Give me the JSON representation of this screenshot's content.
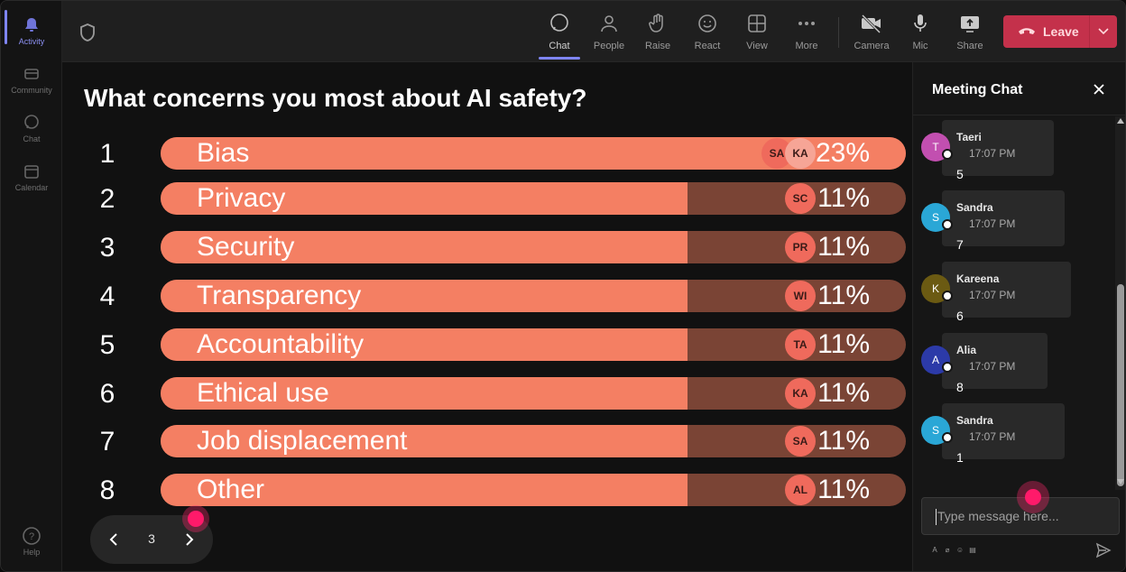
{
  "rail": {
    "items": [
      {
        "label": "Activity",
        "icon": "bell-icon"
      },
      {
        "label": "Community",
        "icon": "community-icon"
      },
      {
        "label": "Chat",
        "icon": "chat-icon"
      },
      {
        "label": "Calendar",
        "icon": "calendar-icon"
      },
      {
        "label": "Help",
        "icon": "help-icon"
      }
    ]
  },
  "toolbar": {
    "chat": "Chat",
    "people": "People",
    "raise": "Raise",
    "react": "React",
    "view": "View",
    "more": "More",
    "camera": "Camera",
    "mic": "Mic",
    "share": "Share",
    "leave": "Leave"
  },
  "poll": {
    "question": "What concerns you most about AI safety?",
    "options": [
      {
        "rank": "1",
        "label": "Bias",
        "percent": "23%",
        "share": 1.0,
        "voters": [
          "SA",
          "KA"
        ]
      },
      {
        "rank": "2",
        "label": "Privacy",
        "percent": "11%",
        "share": 0.707,
        "voters": [
          "SC"
        ]
      },
      {
        "rank": "3",
        "label": "Security",
        "percent": "11%",
        "share": 0.707,
        "voters": [
          "PR"
        ]
      },
      {
        "rank": "4",
        "label": "Transparency",
        "percent": "11%",
        "share": 0.707,
        "voters": [
          "WI"
        ]
      },
      {
        "rank": "5",
        "label": "Accountability",
        "percent": "11%",
        "share": 0.707,
        "voters": [
          "TA"
        ]
      },
      {
        "rank": "6",
        "label": "Ethical use",
        "percent": "11%",
        "share": 0.707,
        "voters": [
          "KA"
        ]
      },
      {
        "rank": "7",
        "label": "Job displacement",
        "percent": "11%",
        "share": 0.707,
        "voters": [
          "SA"
        ]
      },
      {
        "rank": "8",
        "label": "Other",
        "percent": "11%",
        "share": 0.707,
        "voters": [
          "AL"
        ]
      }
    ],
    "page": "3"
  },
  "chat": {
    "title": "Meeting Chat",
    "placeholder": "Type message here...",
    "messages": [
      {
        "initial": "T",
        "name": "Taeri",
        "time": "17:07 PM",
        "text": "5",
        "color": "#c24fb0"
      },
      {
        "initial": "S",
        "name": "Sandra",
        "time": "17:07 PM",
        "text": "7",
        "color": "#2aa7d6"
      },
      {
        "initial": "K",
        "name": "Kareena",
        "time": "17:07 PM",
        "text": "6",
        "color": "#6b5a12"
      },
      {
        "initial": "A",
        "name": "Alia",
        "time": "17:07 PM",
        "text": "8",
        "color": "#2c3aa8"
      },
      {
        "initial": "S",
        "name": "Sandra",
        "time": "17:07 PM",
        "text": "1",
        "color": "#2aa7d6"
      }
    ]
  },
  "colors": {
    "accent": "#7f85f5",
    "bar_fill": "#f47f63",
    "bar_track": "#7a4435",
    "leave": "#c4314b"
  }
}
